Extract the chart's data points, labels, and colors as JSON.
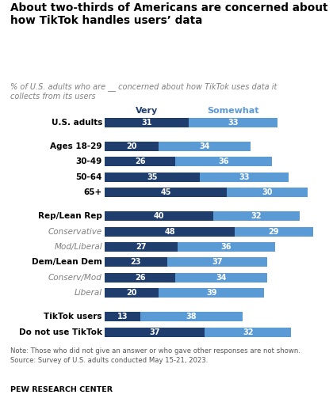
{
  "title": "About two-thirds of Americans are concerned about\nhow TikTok handles users’ data",
  "subtitle": "% of U.S. adults who are __ concerned about how TikTok uses data it\ncollects from its users",
  "categories": [
    "U.S. adults",
    "Ages 18-29",
    "30-49",
    "50-64",
    "65+",
    "Rep/Lean Rep",
    "Conservative",
    "Mod/Liberal",
    "Dem/Lean Dem",
    "Conserv/Mod",
    "Liberal",
    "TikTok users",
    "Do not use TikTok"
  ],
  "very": [
    31,
    20,
    26,
    35,
    45,
    40,
    48,
    27,
    23,
    26,
    20,
    13,
    37
  ],
  "somewhat": [
    33,
    34,
    36,
    33,
    30,
    32,
    29,
    36,
    37,
    34,
    39,
    38,
    32
  ],
  "color_very": "#1f3e6e",
  "color_somewhat": "#5b9bd5",
  "italic_labels": [
    "Conservative",
    "Mod/Liberal",
    "Conserv/Mod",
    "Liberal"
  ],
  "bold_labels": [
    "U.S. adults",
    "Ages 18-29",
    "30-49",
    "50-64",
    "65+",
    "Rep/Lean Rep",
    "Dem/Lean Dem",
    "TikTok users",
    "Do not use TikTok"
  ],
  "gap_before": [
    "Ages 18-29",
    "Rep/Lean Rep",
    "TikTok users"
  ],
  "note": "Note: Those who did not give an answer or who gave other responses are not shown.\nSource: Survey of U.S. adults conducted May 15-21, 2023.",
  "source": "PEW RESEARCH CENTER",
  "legend_very": "Very",
  "legend_somewhat": "Somewhat",
  "bar_height": 0.62,
  "xlim": 82,
  "background_color": "#ffffff"
}
